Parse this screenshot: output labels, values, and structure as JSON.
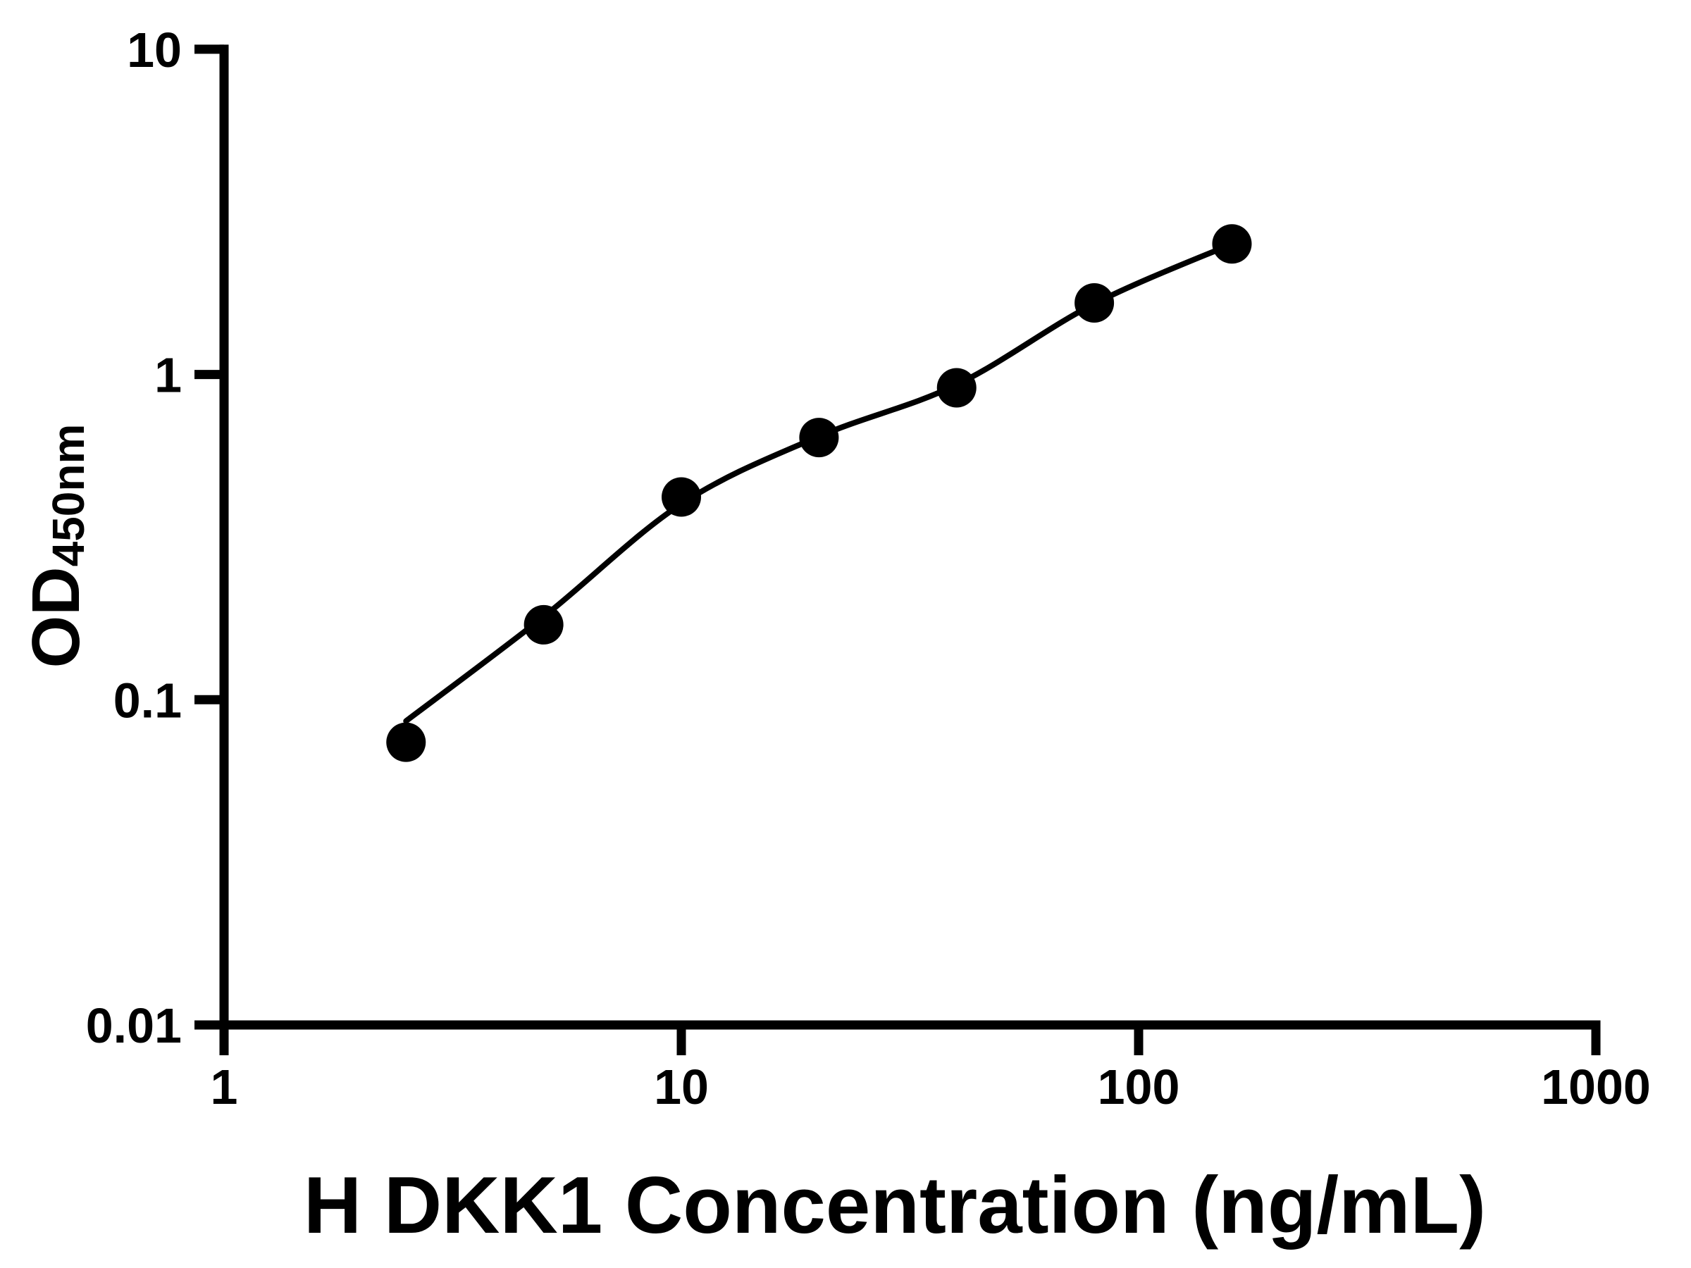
{
  "figure": {
    "background": "#ffffff"
  },
  "chart_data": {
    "type": "scatter",
    "title": "",
    "xlabel": "H DKK1 Concentration (ng/mL)",
    "ylabel": "OD450nm",
    "ylabel_main": "OD",
    "ylabel_sub": "450nm",
    "x_scale": "log10",
    "y_scale": "log10",
    "xlim": [
      1,
      1000
    ],
    "ylim": [
      0.01,
      10
    ],
    "grid": false,
    "legend": false,
    "x_ticks": [
      {
        "v": 1,
        "label": "1"
      },
      {
        "v": 10,
        "label": "10"
      },
      {
        "v": 100,
        "label": "100"
      },
      {
        "v": 1000,
        "label": "1000"
      }
    ],
    "y_ticks": [
      {
        "v": 10,
        "label": "10"
      },
      {
        "v": 1,
        "label": "1"
      },
      {
        "v": 0.1,
        "label": "0.1"
      },
      {
        "v": 0.01,
        "label": "0.01"
      }
    ],
    "series": [
      {
        "name": "standard-curve-points",
        "marker": "filled-circle",
        "color": "#000000",
        "points": [
          {
            "x": 2.5,
            "y": 0.074
          },
          {
            "x": 5,
            "y": 0.17
          },
          {
            "x": 10,
            "y": 0.42
          },
          {
            "x": 20,
            "y": 0.64
          },
          {
            "x": 40,
            "y": 0.91
          },
          {
            "x": 80,
            "y": 1.66
          },
          {
            "x": 160,
            "y": 2.52
          }
        ]
      }
    ],
    "fit_curve": {
      "name": "4pl-fit-line",
      "color": "#000000",
      "samples": [
        {
          "x": 2.5,
          "y": 0.086
        },
        {
          "x": 5,
          "y": 0.18
        },
        {
          "x": 10,
          "y": 0.4
        },
        {
          "x": 20,
          "y": 0.645
        },
        {
          "x": 40,
          "y": 0.93
        },
        {
          "x": 80,
          "y": 1.65
        },
        {
          "x": 160,
          "y": 2.52
        }
      ]
    }
  },
  "style": {
    "axis_color": "#000000",
    "marker_color": "#000000",
    "curve_color": "#000000",
    "text_color": "#000000"
  }
}
